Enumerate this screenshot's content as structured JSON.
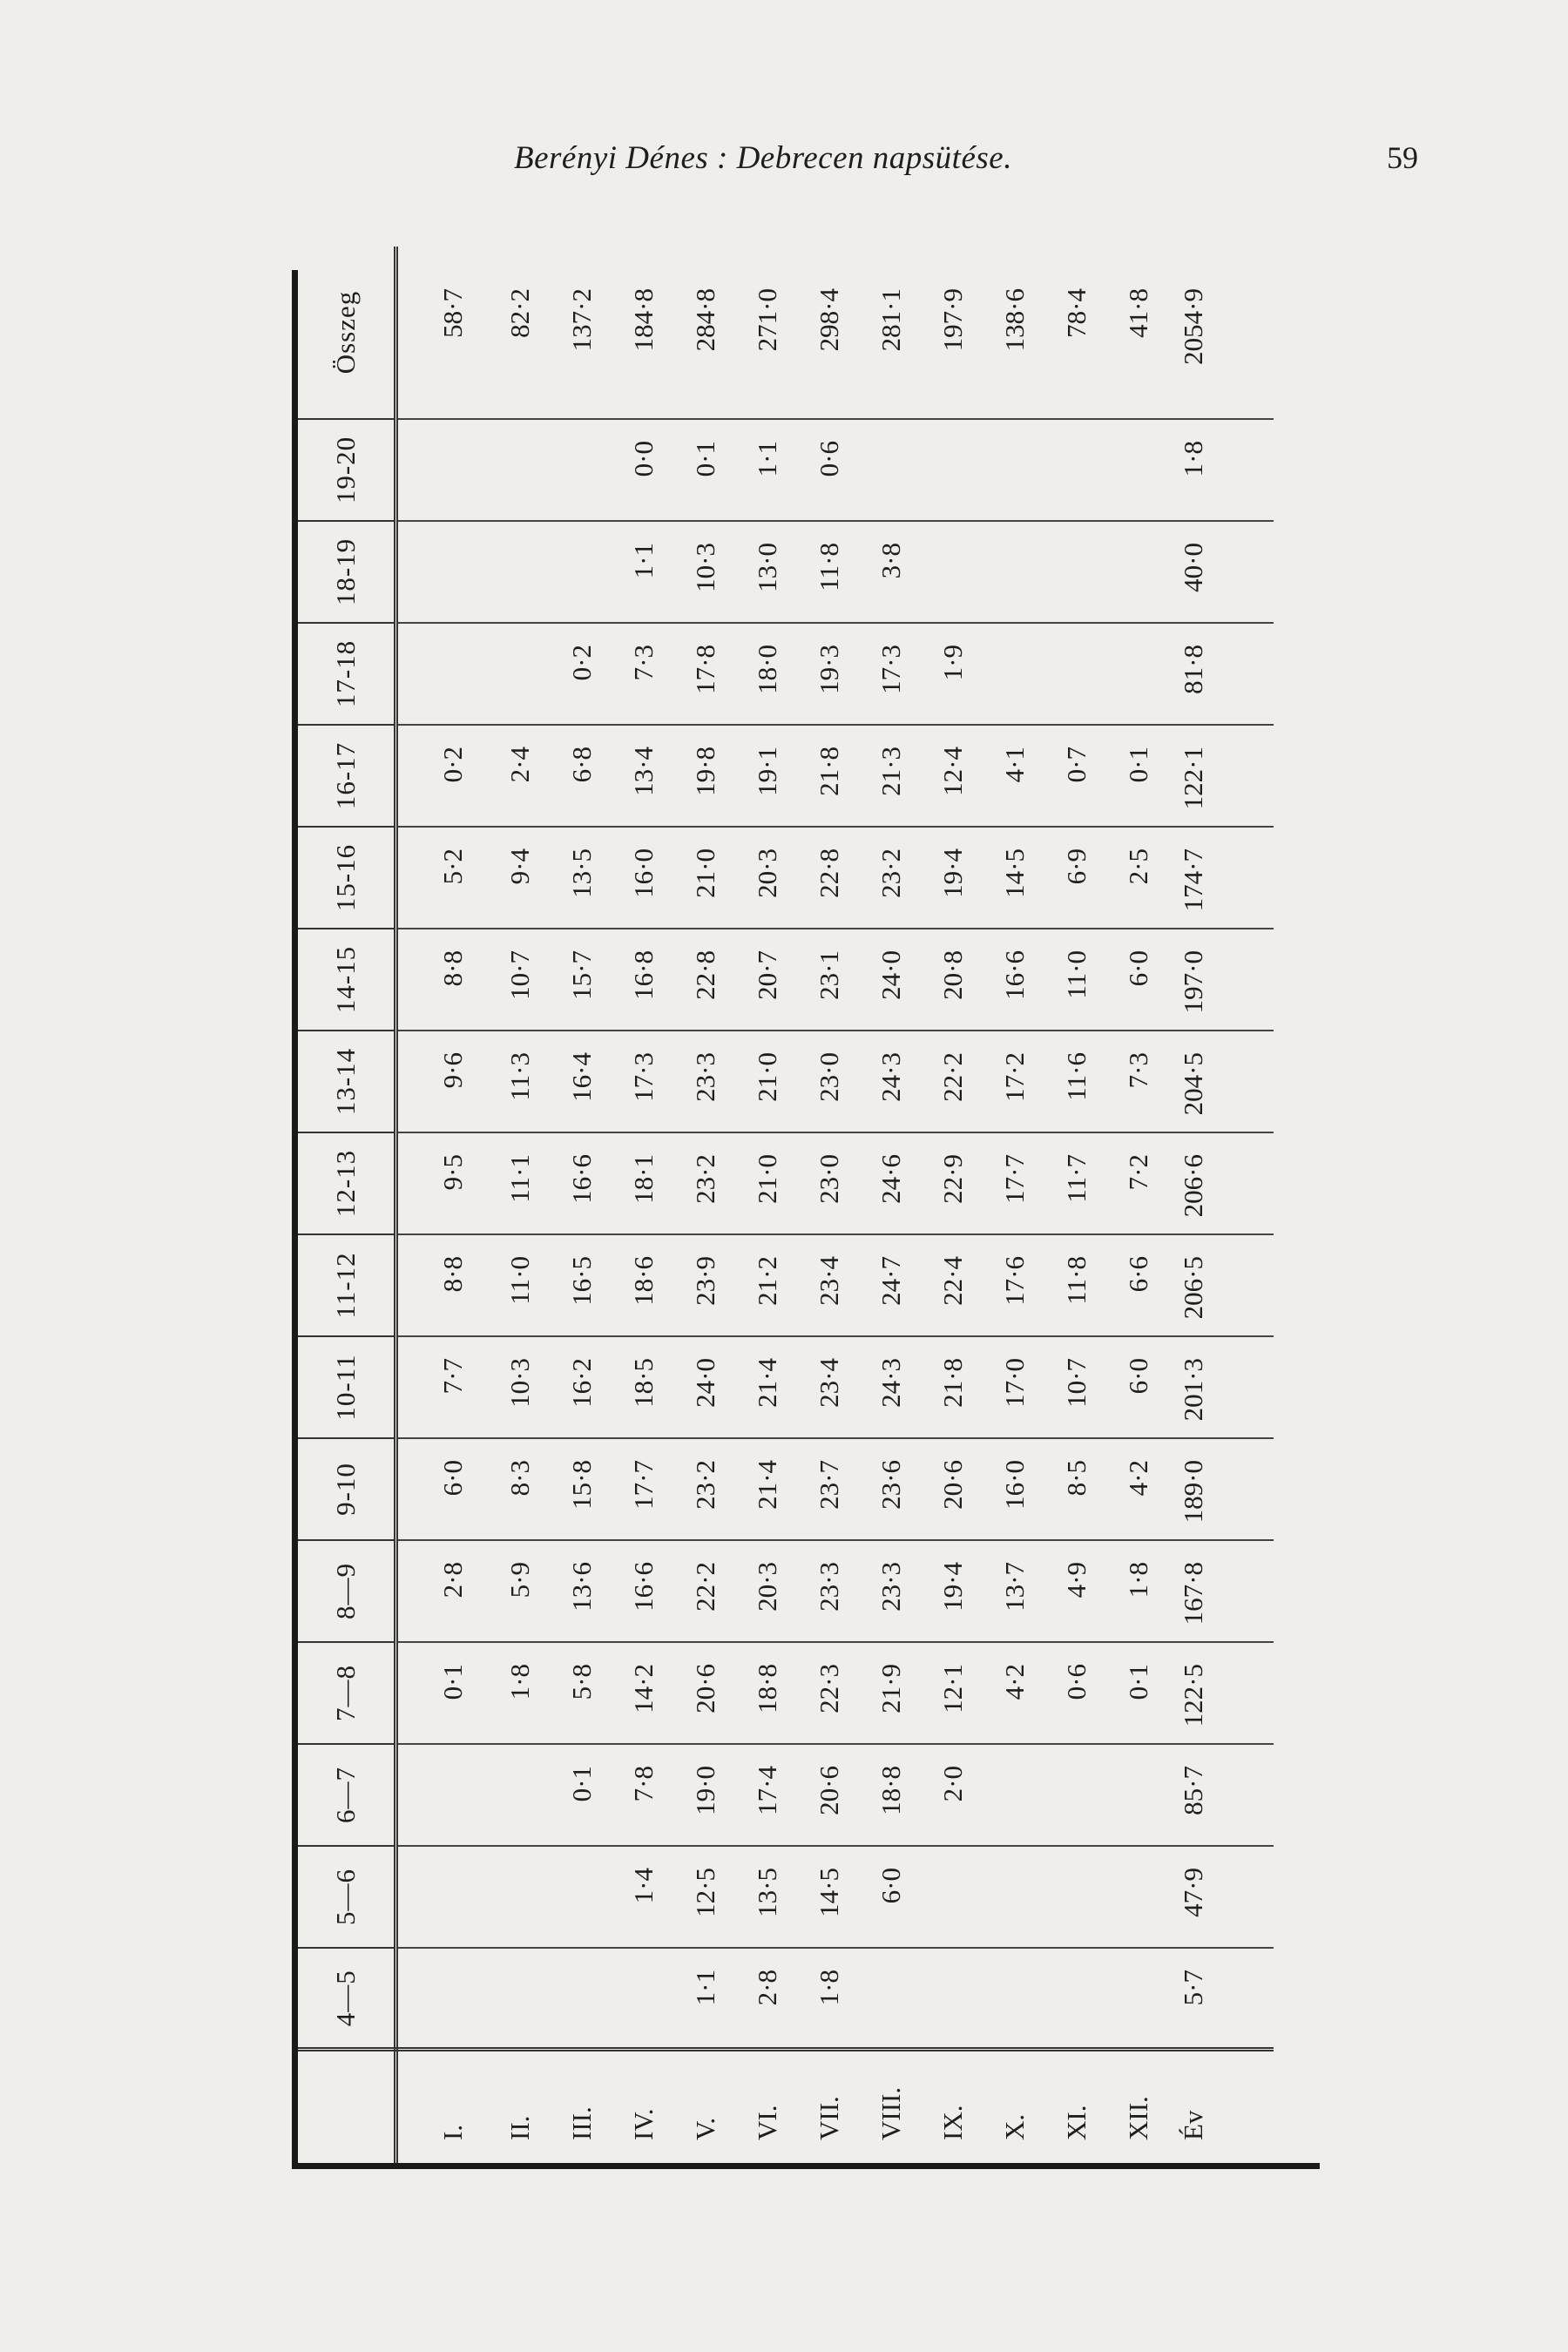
{
  "header": {
    "title": "Berényi Dénes : Debrecen napsütése.",
    "page_number": "59"
  },
  "table": {
    "columns": [
      "",
      "4—5",
      "5—6",
      "6—7",
      "7—8",
      "8—9",
      "9-10",
      "10-11",
      "11-12",
      "12-13",
      "13-14",
      "14-15",
      "15-16",
      "16-17",
      "17-18",
      "18-19",
      "19-20",
      "Összeg"
    ],
    "rows": [
      {
        "label": "I.",
        "values": [
          "",
          "",
          "",
          "0·1",
          "2·8",
          "6·0",
          "7·7",
          "8·8",
          "9·5",
          "9·6",
          "8·8",
          "5·2",
          "0·2",
          "",
          "",
          "",
          "58·7"
        ]
      },
      {
        "label": "II.",
        "values": [
          "",
          "",
          "",
          "1·8",
          "5·9",
          "8·3",
          "10·3",
          "11·0",
          "11·1",
          "11·3",
          "10·7",
          "9·4",
          "2·4",
          "",
          "",
          "",
          "82·2"
        ]
      },
      {
        "label": "III.",
        "values": [
          "",
          "",
          "0·1",
          "5·8",
          "13·6",
          "15·8",
          "16·2",
          "16·5",
          "16·6",
          "16·4",
          "15·7",
          "13·5",
          "6·8",
          "0·2",
          "",
          "",
          "137·2"
        ]
      },
      {
        "label": "IV.",
        "values": [
          "",
          "1·4",
          "7·8",
          "14·2",
          "16·6",
          "17·7",
          "18·5",
          "18·6",
          "18·1",
          "17·3",
          "16·8",
          "16·0",
          "13·4",
          "7·3",
          "1·1",
          "0·0",
          "184·8"
        ]
      },
      {
        "label": "V.",
        "values": [
          "1·1",
          "12·5",
          "19·0",
          "20·6",
          "22·2",
          "23·2",
          "24·0",
          "23·9",
          "23·2",
          "23·3",
          "22·8",
          "21·0",
          "19·8",
          "17·8",
          "10·3",
          "0·1",
          "284·8"
        ]
      },
      {
        "label": "VI.",
        "values": [
          "2·8",
          "13·5",
          "17·4",
          "18·8",
          "20·3",
          "21·4",
          "21·4",
          "21·2",
          "21·0",
          "21·0",
          "20·7",
          "20·3",
          "19·1",
          "18·0",
          "13·0",
          "1·1",
          "271·0"
        ]
      },
      {
        "label": "VII.",
        "values": [
          "1·8",
          "14·5",
          "20·6",
          "22·3",
          "23·3",
          "23·7",
          "23·4",
          "23·4",
          "23·0",
          "23·0",
          "23·1",
          "22·8",
          "21·8",
          "19·3",
          "11·8",
          "0·6",
          "298·4"
        ]
      },
      {
        "label": "VIII.",
        "values": [
          "",
          "6·0",
          "18·8",
          "21·9",
          "23·3",
          "23·6",
          "24·3",
          "24·7",
          "24·6",
          "24·3",
          "24·0",
          "23·2",
          "21·3",
          "17·3",
          "3·8",
          "",
          "281·1"
        ]
      },
      {
        "label": "IX.",
        "values": [
          "",
          "",
          "2·0",
          "12·1",
          "19·4",
          "20·6",
          "21·8",
          "22·4",
          "22·9",
          "22·2",
          "20·8",
          "19·4",
          "12·4",
          "1·9",
          "",
          "",
          "197·9"
        ]
      },
      {
        "label": "X.",
        "values": [
          "",
          "",
          "",
          "4·2",
          "13·7",
          "16·0",
          "17·0",
          "17·6",
          "17·7",
          "17·2",
          "16·6",
          "14·5",
          "4·1",
          "",
          "",
          "",
          "138·6"
        ]
      },
      {
        "label": "XI.",
        "values": [
          "",
          "",
          "",
          "0·6",
          "4·9",
          "8·5",
          "10·7",
          "11·8",
          "11·7",
          "11·6",
          "11·0",
          "6·9",
          "0·7",
          "",
          "",
          "",
          "78·4"
        ]
      },
      {
        "label": "XII.",
        "values": [
          "",
          "",
          "",
          "0·1",
          "1·8",
          "4·2",
          "6·0",
          "6·6",
          "7·2",
          "7·3",
          "6·0",
          "2·5",
          "0·1",
          "",
          "",
          "",
          "41·8"
        ]
      },
      {
        "label": "Év",
        "values": [
          "5·7",
          "47·9",
          "85·7",
          "122·5",
          "167·8",
          "189·0",
          "201·3",
          "206·5",
          "206·6",
          "204·5",
          "197·0",
          "174·7",
          "122·1",
          "81·8",
          "40·0",
          "1·8",
          "2054·9"
        ]
      }
    ]
  }
}
